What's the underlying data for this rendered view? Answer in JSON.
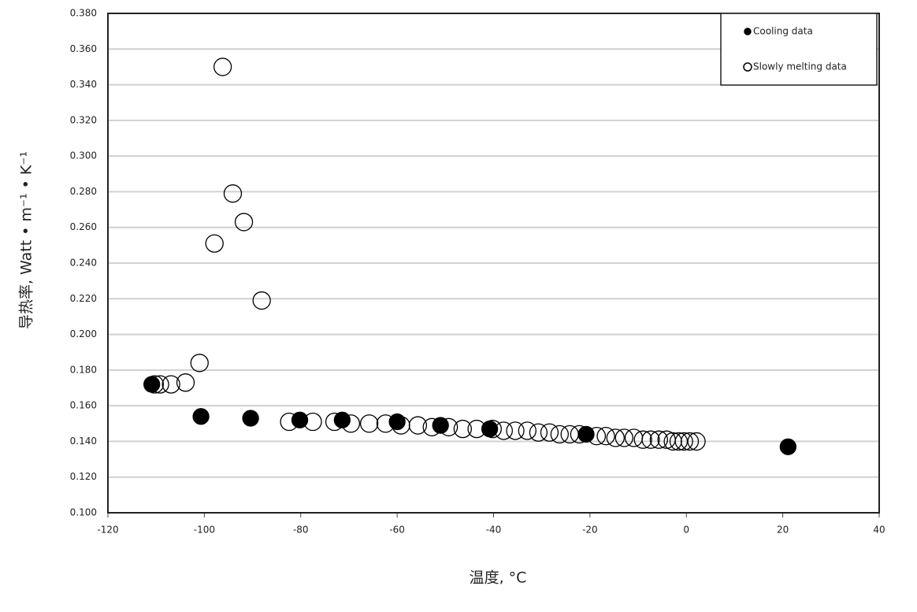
{
  "chart_data": {
    "type": "scatter",
    "x_label": "温度, °C",
    "y_label": "导热率, Watt • m⁻¹ • K⁻¹",
    "xlim": [
      -120,
      40
    ],
    "xticks": [
      -120,
      -100,
      -80,
      -60,
      -40,
      -20,
      0,
      20,
      40
    ],
    "ylim": [
      0.1,
      0.38
    ],
    "yticks": [
      {
        "value": 0.1,
        "label": "0.100"
      },
      {
        "value": 0.12,
        "label": "0.120"
      },
      {
        "value": 0.14,
        "label": "0.140"
      },
      {
        "value": 0.16,
        "label": "0.160"
      },
      {
        "value": 0.18,
        "label": "0.180"
      },
      {
        "value": 0.2,
        "label": "0.200"
      },
      {
        "value": 0.22,
        "label": "0.220"
      },
      {
        "value": 0.24,
        "label": "0.240"
      },
      {
        "value": 0.26,
        "label": "0.260"
      },
      {
        "value": 0.28,
        "label": "0.280"
      },
      {
        "value": 0.3,
        "label": "0.300"
      },
      {
        "value": 0.32,
        "label": "0.320"
      },
      {
        "value": 0.34,
        "label": "0.340"
      },
      {
        "value": 0.36,
        "label": "0.360"
      },
      {
        "value": 0.38,
        "label": "0.380"
      }
    ],
    "grid": true,
    "legend": "upper right",
    "series": [
      {
        "name": "Cooling data",
        "color": "#000000",
        "filled": true,
        "x": [
          -110.9,
          -100.7,
          -90.4,
          -80.2,
          -71.4,
          -60.0,
          -51.0,
          -40.8,
          -20.8,
          21.1
        ],
        "values": [
          0.172,
          0.154,
          0.153,
          0.152,
          0.152,
          0.151,
          0.149,
          0.147,
          0.144,
          0.137
        ]
      },
      {
        "name": "Slowly melting data",
        "color": "#000000",
        "filled": false,
        "x": [
          -96.2,
          -94.1,
          -91.8,
          -97.9,
          -88.1,
          -101.0,
          -103.9,
          -106.9,
          -109.2,
          -110.3,
          -82.4,
          -77.5,
          -73.0,
          -69.6,
          -65.8,
          -62.4,
          -59.2,
          -55.7,
          -52.8,
          -49.3,
          -46.4,
          -43.5,
          -40.2,
          -37.9,
          -35.5,
          -33.0,
          -30.7,
          -28.4,
          -26.3,
          -24.2,
          -22.2,
          -18.6,
          -16.7,
          -14.7,
          -12.9,
          -10.9,
          -9.0,
          -7.4,
          -5.7,
          -4.1,
          -2.8,
          -1.6,
          -0.5,
          0.7,
          2.1
        ],
        "values": [
          0.35,
          0.279,
          0.263,
          0.251,
          0.219,
          0.184,
          0.173,
          0.172,
          0.172,
          0.172,
          0.151,
          0.151,
          0.151,
          0.15,
          0.15,
          0.15,
          0.149,
          0.149,
          0.148,
          0.148,
          0.147,
          0.147,
          0.147,
          0.146,
          0.146,
          0.146,
          0.145,
          0.145,
          0.144,
          0.144,
          0.144,
          0.143,
          0.143,
          0.142,
          0.142,
          0.142,
          0.141,
          0.141,
          0.141,
          0.141,
          0.14,
          0.14,
          0.14,
          0.14,
          0.14
        ]
      }
    ]
  }
}
